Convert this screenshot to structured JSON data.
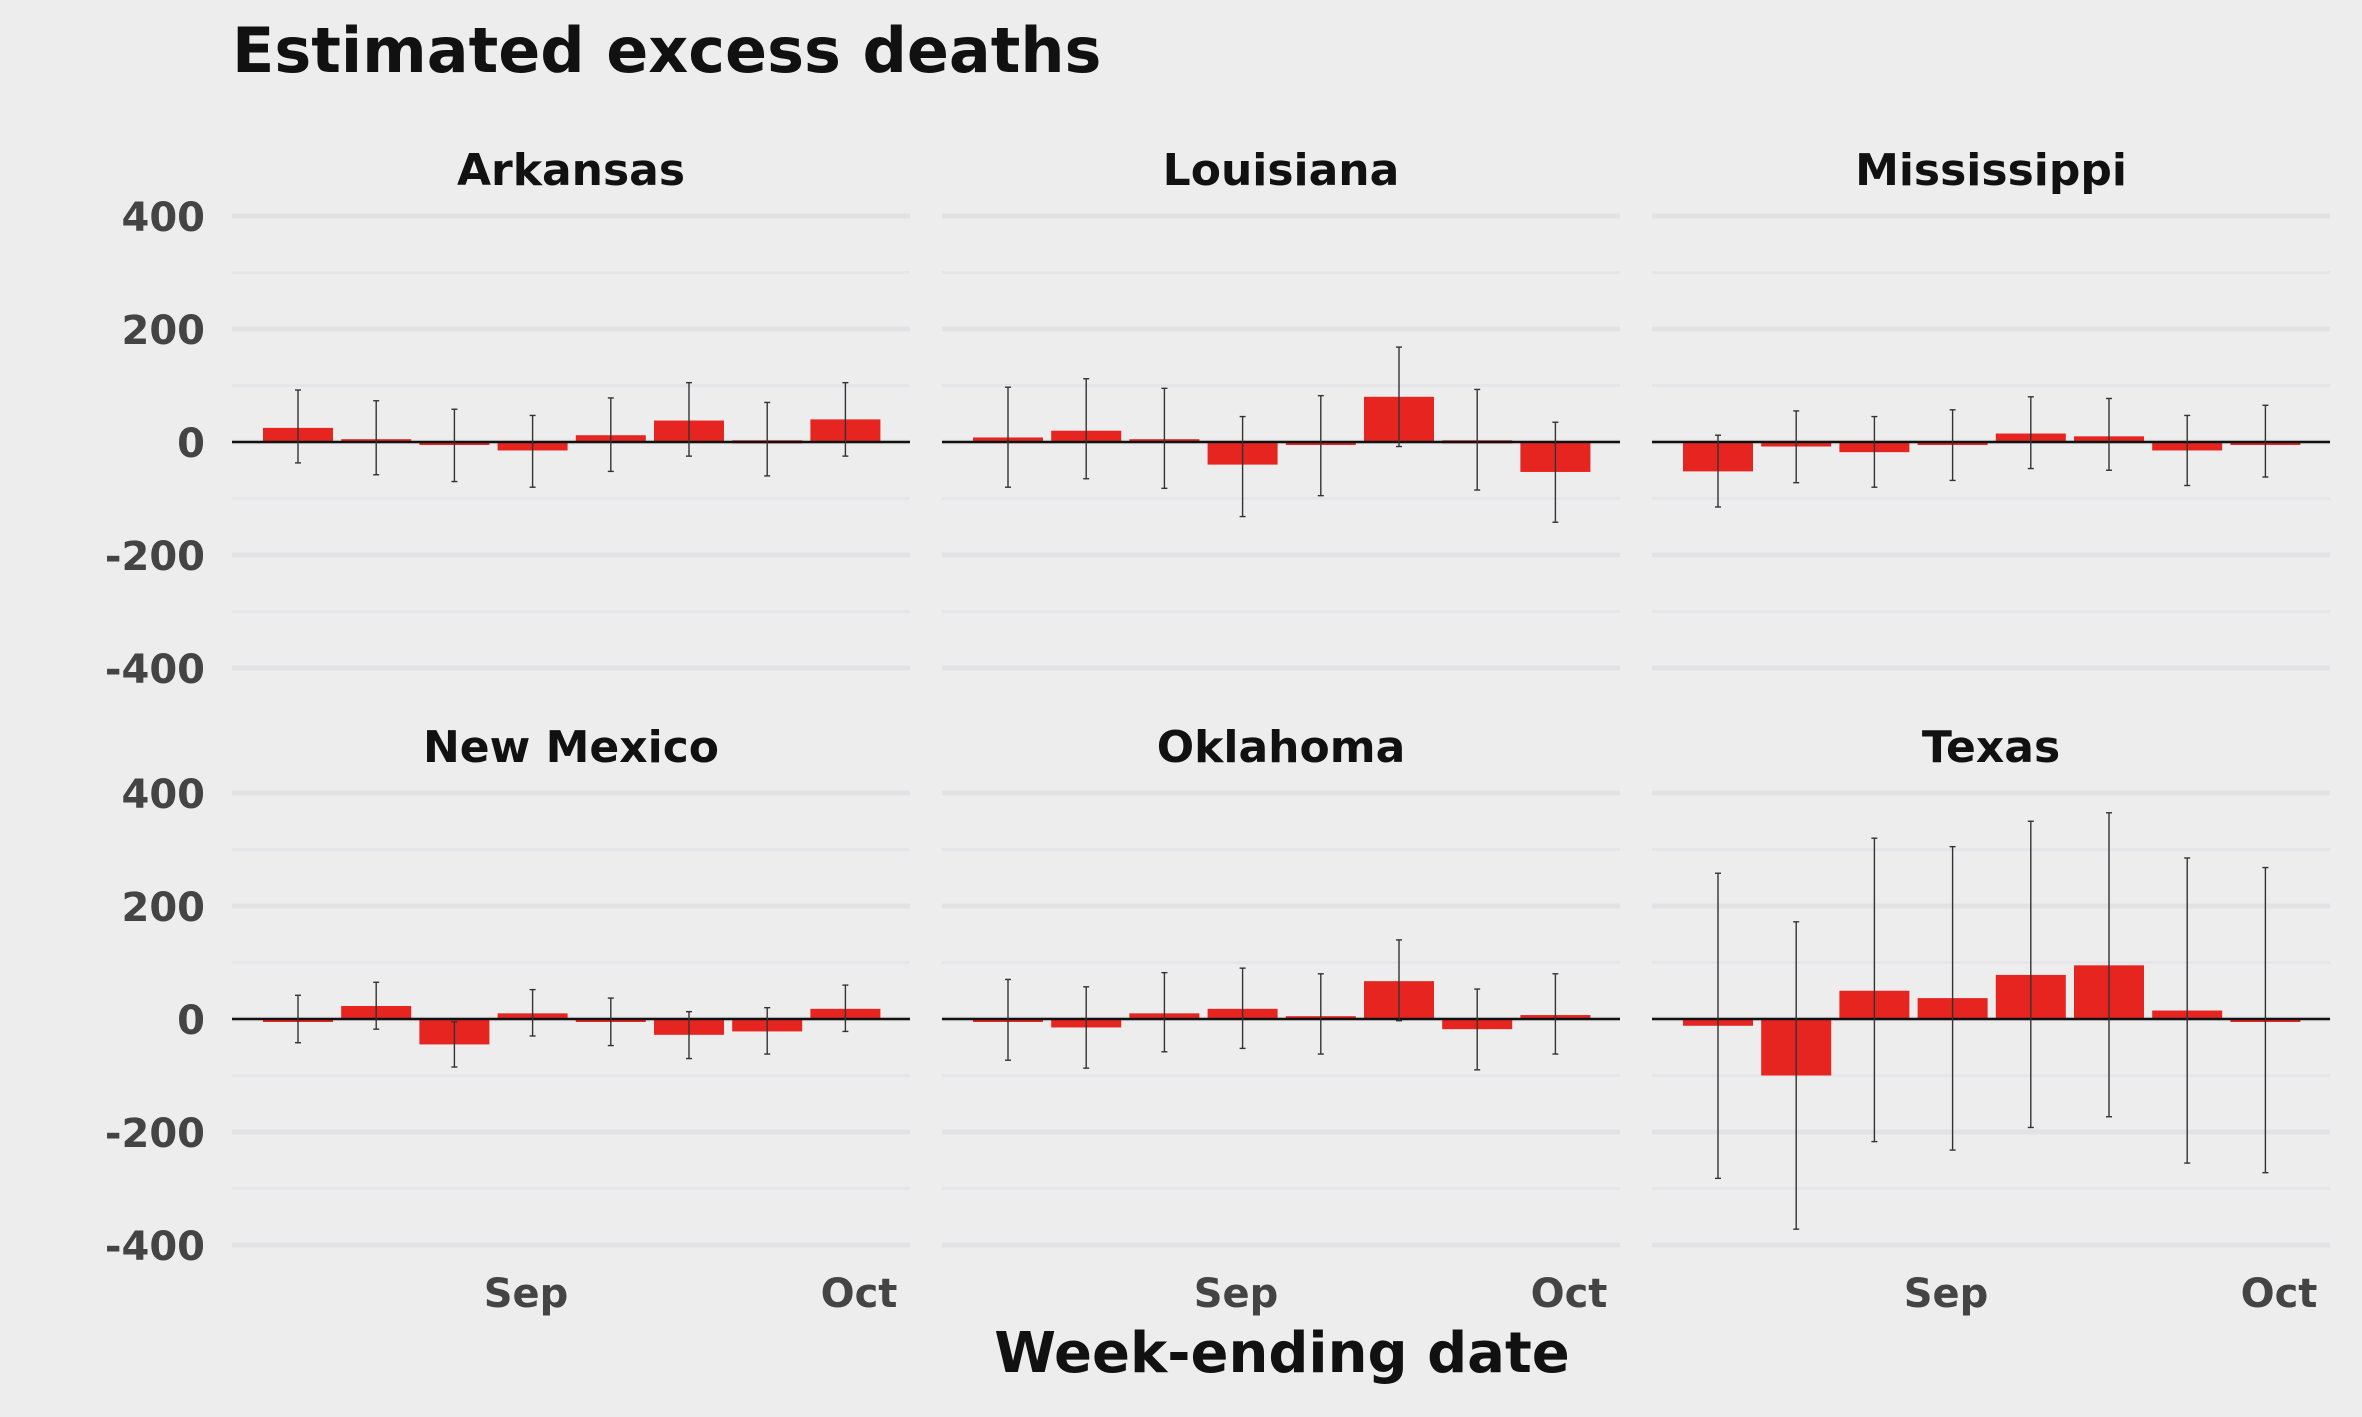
{
  "chart_data": {
    "type": "bar",
    "title": "Estimated excess deaths",
    "xlabel": "Week-ending date",
    "ylabel": "",
    "ylim": [
      -400,
      400
    ],
    "yticks": [
      -400,
      -200,
      0,
      200,
      400
    ],
    "xticks": [
      "Sep",
      "Oct"
    ],
    "grid": true,
    "colors": {
      "bar": "#e62521",
      "error_bar": "#333333",
      "zero_line": "#111111",
      "background": "#ededee",
      "grid": "#e3e3e5"
    },
    "weeks": 8,
    "panels": [
      {
        "name": "Arkansas",
        "values": [
          25,
          5,
          -5,
          -15,
          12,
          38,
          3,
          40
        ],
        "lower": [
          -37,
          -58,
          -70,
          -80,
          -52,
          -25,
          -60,
          -25
        ],
        "upper": [
          92,
          73,
          58,
          47,
          78,
          105,
          70,
          105
        ]
      },
      {
        "name": "Louisiana",
        "values": [
          8,
          20,
          5,
          -40,
          -3,
          80,
          3,
          -53
        ],
        "lower": [
          -80,
          -65,
          -82,
          -132,
          -95,
          -8,
          -85,
          -142
        ],
        "upper": [
          97,
          112,
          95,
          45,
          82,
          168,
          93,
          35
        ]
      },
      {
        "name": "Mississippi",
        "values": [
          -52,
          -8,
          -18,
          -3,
          15,
          10,
          -15,
          0
        ],
        "lower": [
          -115,
          -72,
          -80,
          -68,
          -47,
          -50,
          -77,
          -62
        ],
        "upper": [
          12,
          55,
          45,
          57,
          80,
          77,
          47,
          65
        ]
      },
      {
        "name": "New Mexico",
        "values": [
          0,
          23,
          -45,
          10,
          -5,
          -28,
          -22,
          18
        ],
        "lower": [
          -42,
          -18,
          -85,
          -30,
          -47,
          -70,
          -62,
          -22
        ],
        "upper": [
          42,
          65,
          -5,
          52,
          37,
          13,
          20,
          60
        ]
      },
      {
        "name": "Oklahoma",
        "values": [
          0,
          -15,
          10,
          18,
          5,
          67,
          -18,
          7
        ],
        "lower": [
          -73,
          -87,
          -58,
          -52,
          -62,
          -3,
          -90,
          -62
        ],
        "upper": [
          70,
          57,
          82,
          90,
          80,
          140,
          53,
          80
        ]
      },
      {
        "name": "Texas",
        "values": [
          -12,
          -100,
          50,
          37,
          78,
          95,
          15,
          0
        ],
        "lower": [
          -282,
          -372,
          -217,
          -232,
          -192,
          -173,
          -255,
          -272
        ],
        "upper": [
          258,
          172,
          320,
          305,
          350,
          365,
          285,
          268
        ]
      }
    ]
  }
}
